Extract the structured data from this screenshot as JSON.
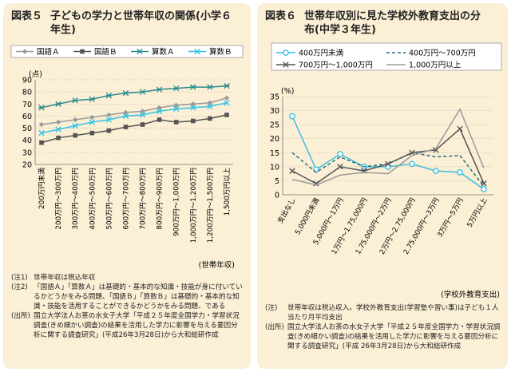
{
  "chart_data": [
    {
      "type": "line",
      "figure_label": "図表５",
      "title": "子どもの学力と世帯年収の関係(小学６年生)",
      "unit": "(点)",
      "xlabel": "(世帯年収)",
      "categories": [
        "200万円未満",
        "200万円〜300万円",
        "300万円〜400万円",
        "400万円〜500万円",
        "500万円〜600万円",
        "600万円〜700万円",
        "700万円〜800万円",
        "800万円〜900万円",
        "900万円〜1,000万円",
        "1,000万円〜1,200万円",
        "1,200万円〜1,500万円",
        "1,500万円以上"
      ],
      "ylim": [
        20,
        90
      ],
      "yticks": [
        20,
        30,
        40,
        50,
        60,
        70,
        80,
        90
      ],
      "grid": true,
      "legend_position": "top",
      "series": [
        {
          "name": "国語Ａ",
          "color": "#9a9a9a",
          "marker": "diamond",
          "values": [
            53,
            55,
            57,
            59,
            61,
            63,
            64,
            67,
            69,
            70,
            71,
            75
          ]
        },
        {
          "name": "国語Ｂ",
          "color": "#555555",
          "marker": "square",
          "values": [
            38,
            42,
            44,
            46,
            48,
            51,
            53,
            57,
            55,
            56,
            58,
            61
          ]
        },
        {
          "name": "算数Ａ",
          "color": "#2a8a8e",
          "marker": "star",
          "values": [
            67,
            70,
            73,
            74,
            77,
            79,
            80,
            82,
            83,
            84,
            84,
            85
          ]
        },
        {
          "name": "算数Ｂ",
          "color": "#34c3e6",
          "marker": "x",
          "values": [
            46,
            49,
            52,
            55,
            57,
            60,
            61,
            64,
            66,
            67,
            68,
            71
          ]
        }
      ],
      "notes": [
        {
          "head": "(注1)",
          "text": "世帯年収は税込年収"
        },
        {
          "head": "(注2)",
          "text": "「国語Ａ」「算数Ａ」は基礎的・基本的な知識・技能が身に付いているかどうかをみる問題、「国語Ｂ」「算数Ｂ」は基礎的・基本的な知識・技能を活用することができるかどうかをみる問題、である"
        },
        {
          "head": "(出所)",
          "text": "国立大学法人お茶の水女子大学「平成２５年度全国学力・学習状況調査(きめ細かい調査)の結果を活用した学力に影響を与える要因分析に関する調査研究」(平成26年3月28日)から大和総研作成"
        }
      ]
    },
    {
      "type": "line",
      "figure_label": "図表６",
      "title": "世帯年収別に見た学校外教育支出の分布(中学３年生)",
      "unit": "(%)",
      "xlabel": "(学校外教育支出)",
      "categories": [
        "支出なし",
        "5,000円未満",
        "5,000円〜1万円",
        "1万円〜1.75,000円",
        "1.75,000円〜2万円",
        "2万円〜2.75,000円",
        "2.75,000円〜3万円",
        "3万円〜5万円",
        "5万円以上"
      ],
      "ylim": [
        0,
        35
      ],
      "yticks": [
        0,
        5,
        10,
        15,
        20,
        25,
        30,
        35
      ],
      "grid": true,
      "legend_position": "top",
      "series": [
        {
          "name": "400万円未満",
          "color": "#3bbde0",
          "style": "solid-circle",
          "values": [
            28,
            9,
            14.5,
            10,
            10,
            11,
            8.5,
            8,
            2
          ]
        },
        {
          "name": "400万円〜700万円",
          "color": "#1f6f80",
          "style": "dashed",
          "values": [
            15,
            8,
            13.5,
            10,
            11,
            15,
            13.5,
            14,
            3
          ]
        },
        {
          "name": "700万円〜1,000万円",
          "color": "#555555",
          "style": "solid-x",
          "values": [
            8.5,
            4,
            10,
            8.5,
            11,
            15,
            16,
            23.5,
            4
          ]
        },
        {
          "name": "1,000万円以上",
          "color": "#9a9a9a",
          "style": "solid",
          "values": [
            5.5,
            3.5,
            7,
            8,
            7.5,
            14,
            16.5,
            30.5,
            9.5
          ]
        }
      ],
      "notes": [
        {
          "head": "(注)",
          "text": "世帯年収は税込収入。学校外教育支出(学習塾や習い事)は子ども１人当たり月平均支出"
        },
        {
          "head": "(出所)",
          "text": "国立大学法人お茶の水女子大学「平成２５年度全国学力・学習状況調査(きめ細かい調査)の結果を活用した学力に影響を与える要因分析に関する調査研究」(平成 26年3月28日)から大和総研作成"
        }
      ]
    }
  ]
}
